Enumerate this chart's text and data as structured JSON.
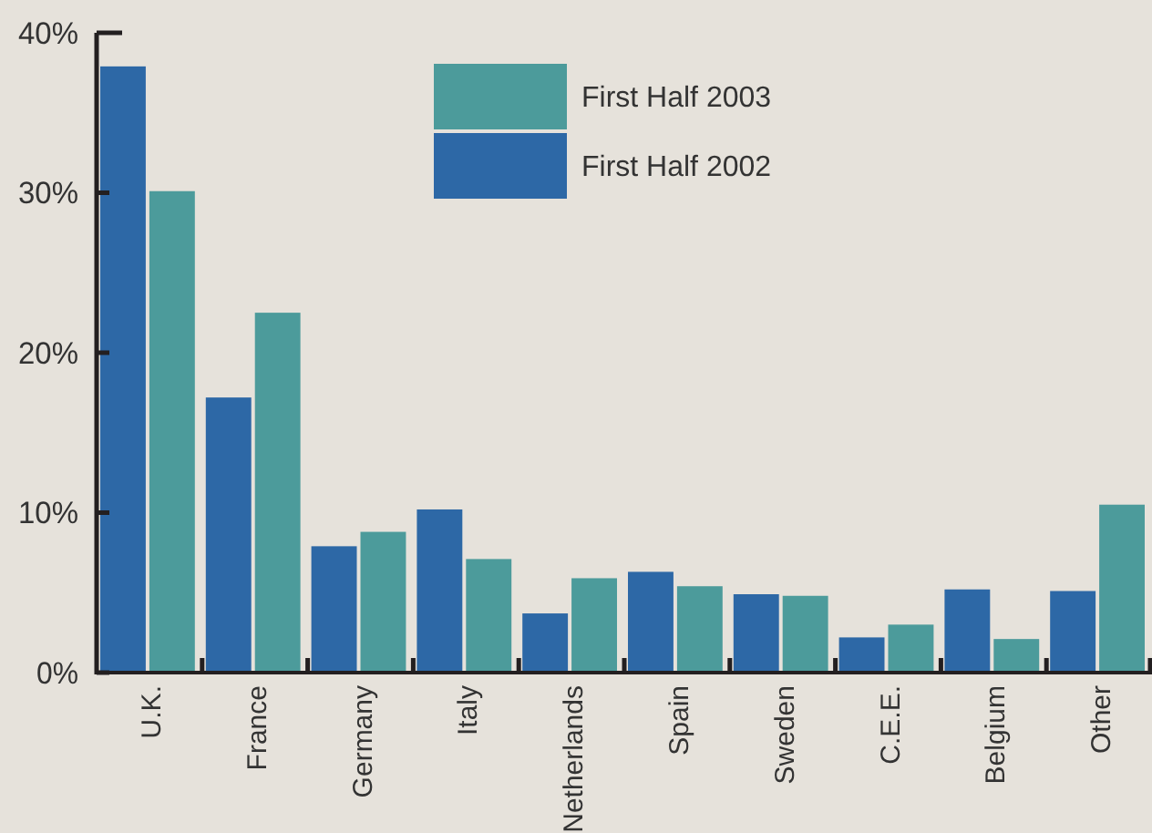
{
  "chart_data": {
    "type": "bar",
    "categories": [
      "U.K.",
      "France",
      "Germany",
      "Italy",
      "Netherlands",
      "Spain",
      "Sweden",
      "C.E.E.",
      "Belgium",
      "Other"
    ],
    "series": [
      {
        "name": "First Half 2002",
        "color": "#2d68a6",
        "values": [
          37.9,
          17.2,
          7.9,
          10.2,
          3.7,
          6.3,
          4.9,
          2.2,
          5.2,
          5.1
        ]
      },
      {
        "name": "First Half 2003",
        "color": "#4c9b9b",
        "values": [
          30.1,
          22.5,
          8.8,
          7.1,
          5.9,
          5.4,
          4.8,
          3.0,
          2.1,
          10.5
        ]
      }
    ],
    "ylim": [
      0,
      40
    ],
    "yticks": [
      {
        "value": 0,
        "label": "0%"
      },
      {
        "value": 10,
        "label": "10%"
      },
      {
        "value": 20,
        "label": "20%"
      },
      {
        "value": 30,
        "label": "30%"
      },
      {
        "value": 40,
        "label": "40%"
      }
    ],
    "legend": "top right",
    "grid": false
  }
}
